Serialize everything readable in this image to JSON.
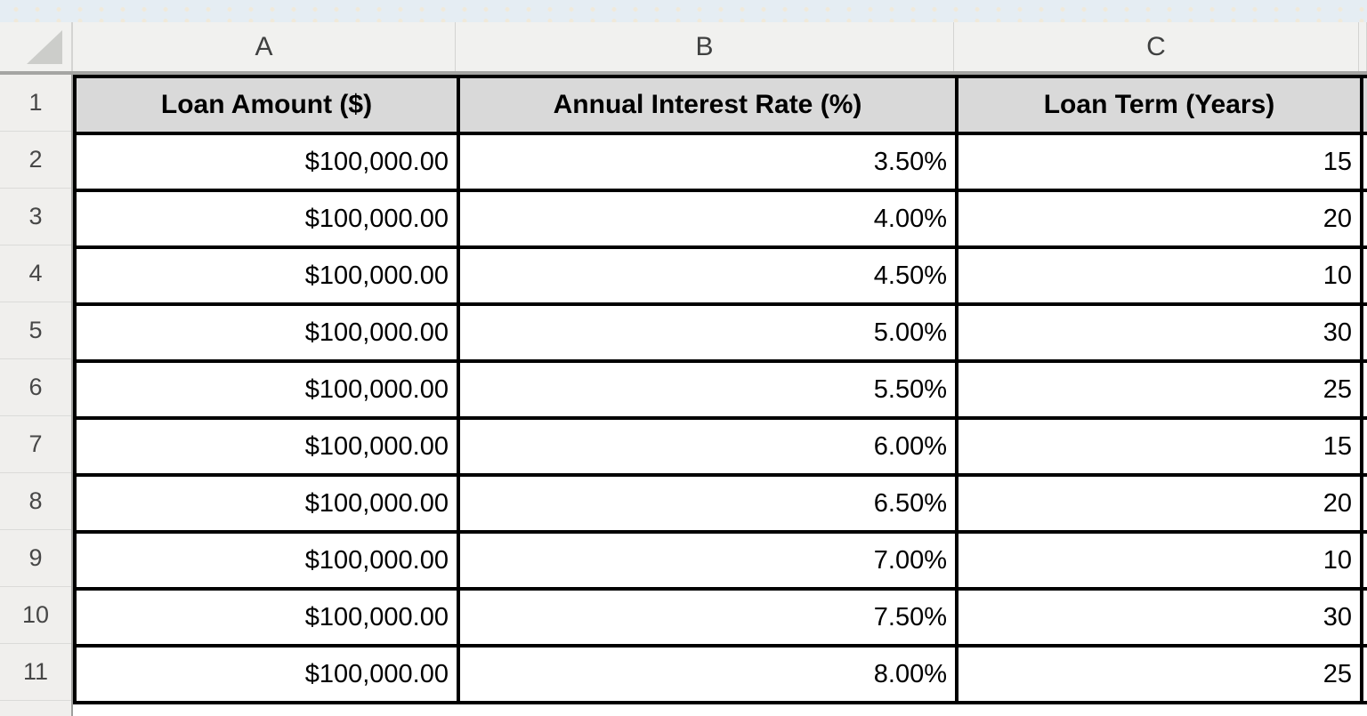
{
  "app": {
    "kind": "spreadsheet-grid"
  },
  "column_headers": [
    "A",
    "B",
    "C"
  ],
  "row_numbers": [
    "1",
    "2",
    "3",
    "4",
    "5",
    "6",
    "7",
    "8",
    "9",
    "10",
    "11"
  ],
  "table": {
    "headers": [
      "Loan Amount ($)",
      "Annual Interest Rate (%)",
      "Loan Term (Years)"
    ],
    "rows": [
      {
        "amount": "$100,000.00",
        "rate": "3.50%",
        "term": "15"
      },
      {
        "amount": "$100,000.00",
        "rate": "4.00%",
        "term": "20"
      },
      {
        "amount": "$100,000.00",
        "rate": "4.50%",
        "term": "10"
      },
      {
        "amount": "$100,000.00",
        "rate": "5.00%",
        "term": "30"
      },
      {
        "amount": "$100,000.00",
        "rate": "5.50%",
        "term": "25"
      },
      {
        "amount": "$100,000.00",
        "rate": "6.00%",
        "term": "15"
      },
      {
        "amount": "$100,000.00",
        "rate": "6.50%",
        "term": "20"
      },
      {
        "amount": "$100,000.00",
        "rate": "7.00%",
        "term": "10"
      },
      {
        "amount": "$100,000.00",
        "rate": "7.50%",
        "term": "30"
      },
      {
        "amount": "$100,000.00",
        "rate": "8.00%",
        "term": "25"
      }
    ]
  },
  "colors": {
    "header_row_fill": "#d9d9d9",
    "grid_border": "#000000",
    "top_strip": "#e5edf3",
    "panel_gray": "#f1f1ef",
    "gutter_gray": "#f0efed"
  }
}
